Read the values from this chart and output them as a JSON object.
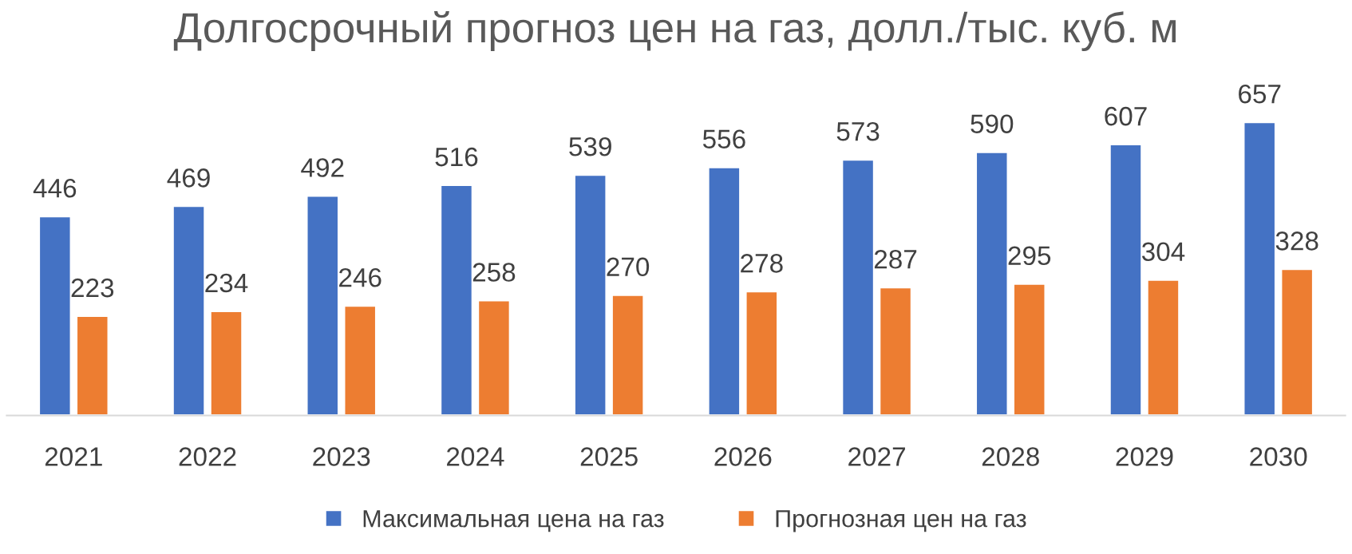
{
  "chart_data": {
    "type": "bar",
    "title": "Долгосрочный прогноз цен на газ, долл./тыс. куб. м",
    "categories": [
      "2021",
      "2022",
      "2023",
      "2024",
      "2025",
      "2026",
      "2027",
      "2028",
      "2029",
      "2030"
    ],
    "series": [
      {
        "name": "Максимальная цена на газ",
        "color": "#4472c4",
        "values": [
          446,
          469,
          492,
          516,
          539,
          556,
          573,
          590,
          607,
          657
        ]
      },
      {
        "name": "Прогнозная цен на газ",
        "color": "#ed7d31",
        "values": [
          223,
          234,
          246,
          258,
          270,
          278,
          287,
          295,
          304,
          328
        ]
      }
    ],
    "data_labels": true,
    "grid": false,
    "legend": "bottom"
  }
}
